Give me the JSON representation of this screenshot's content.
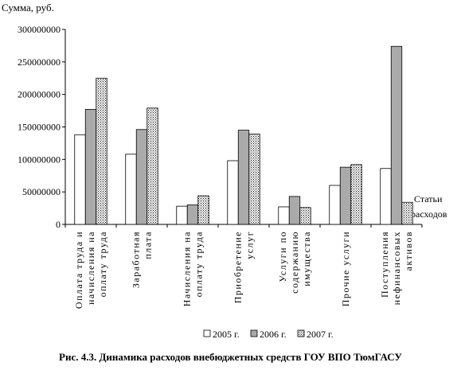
{
  "chart_data": {
    "type": "bar",
    "ylabel": "Сумма, руб.",
    "xlabel": "Статьи расходов",
    "ylim": [
      0,
      300000000
    ],
    "yticks": [
      "0",
      "50000000",
      "100000000",
      "150000000",
      "200000000",
      "250000000",
      "300000000"
    ],
    "categories": [
      [
        "Оплата труда и",
        "начисления на",
        "оплату труда"
      ],
      [
        "Заработная",
        "плата"
      ],
      [
        "Начисления на",
        "оплату труда"
      ],
      [
        "Приобретение",
        "услуг"
      ],
      [
        "Услуги по",
        "содержанию",
        "имущества"
      ],
      [
        "Прочие услуги"
      ],
      [
        "Поступления",
        "нефинансовых",
        "активов"
      ]
    ],
    "series": [
      {
        "name": "2005 г.",
        "values": [
          138000000,
          108000000,
          28000000,
          98000000,
          27000000,
          60000000,
          86000000
        ],
        "fill": "#ffffff"
      },
      {
        "name": "2006 г.",
        "values": [
          177000000,
          146000000,
          30000000,
          145000000,
          43000000,
          88000000,
          274000000
        ],
        "fill": "#aaaaaa"
      },
      {
        "name": "2007 г.",
        "values": [
          225000000,
          179000000,
          44000000,
          139000000,
          26000000,
          92000000,
          34000000
        ],
        "fill": "dots"
      }
    ],
    "grid": false,
    "legend": "bottom"
  },
  "caption": "Рис. 4.3. Динамика расходов внебюджетных средств ГОУ ВПО ТюмГАСУ"
}
